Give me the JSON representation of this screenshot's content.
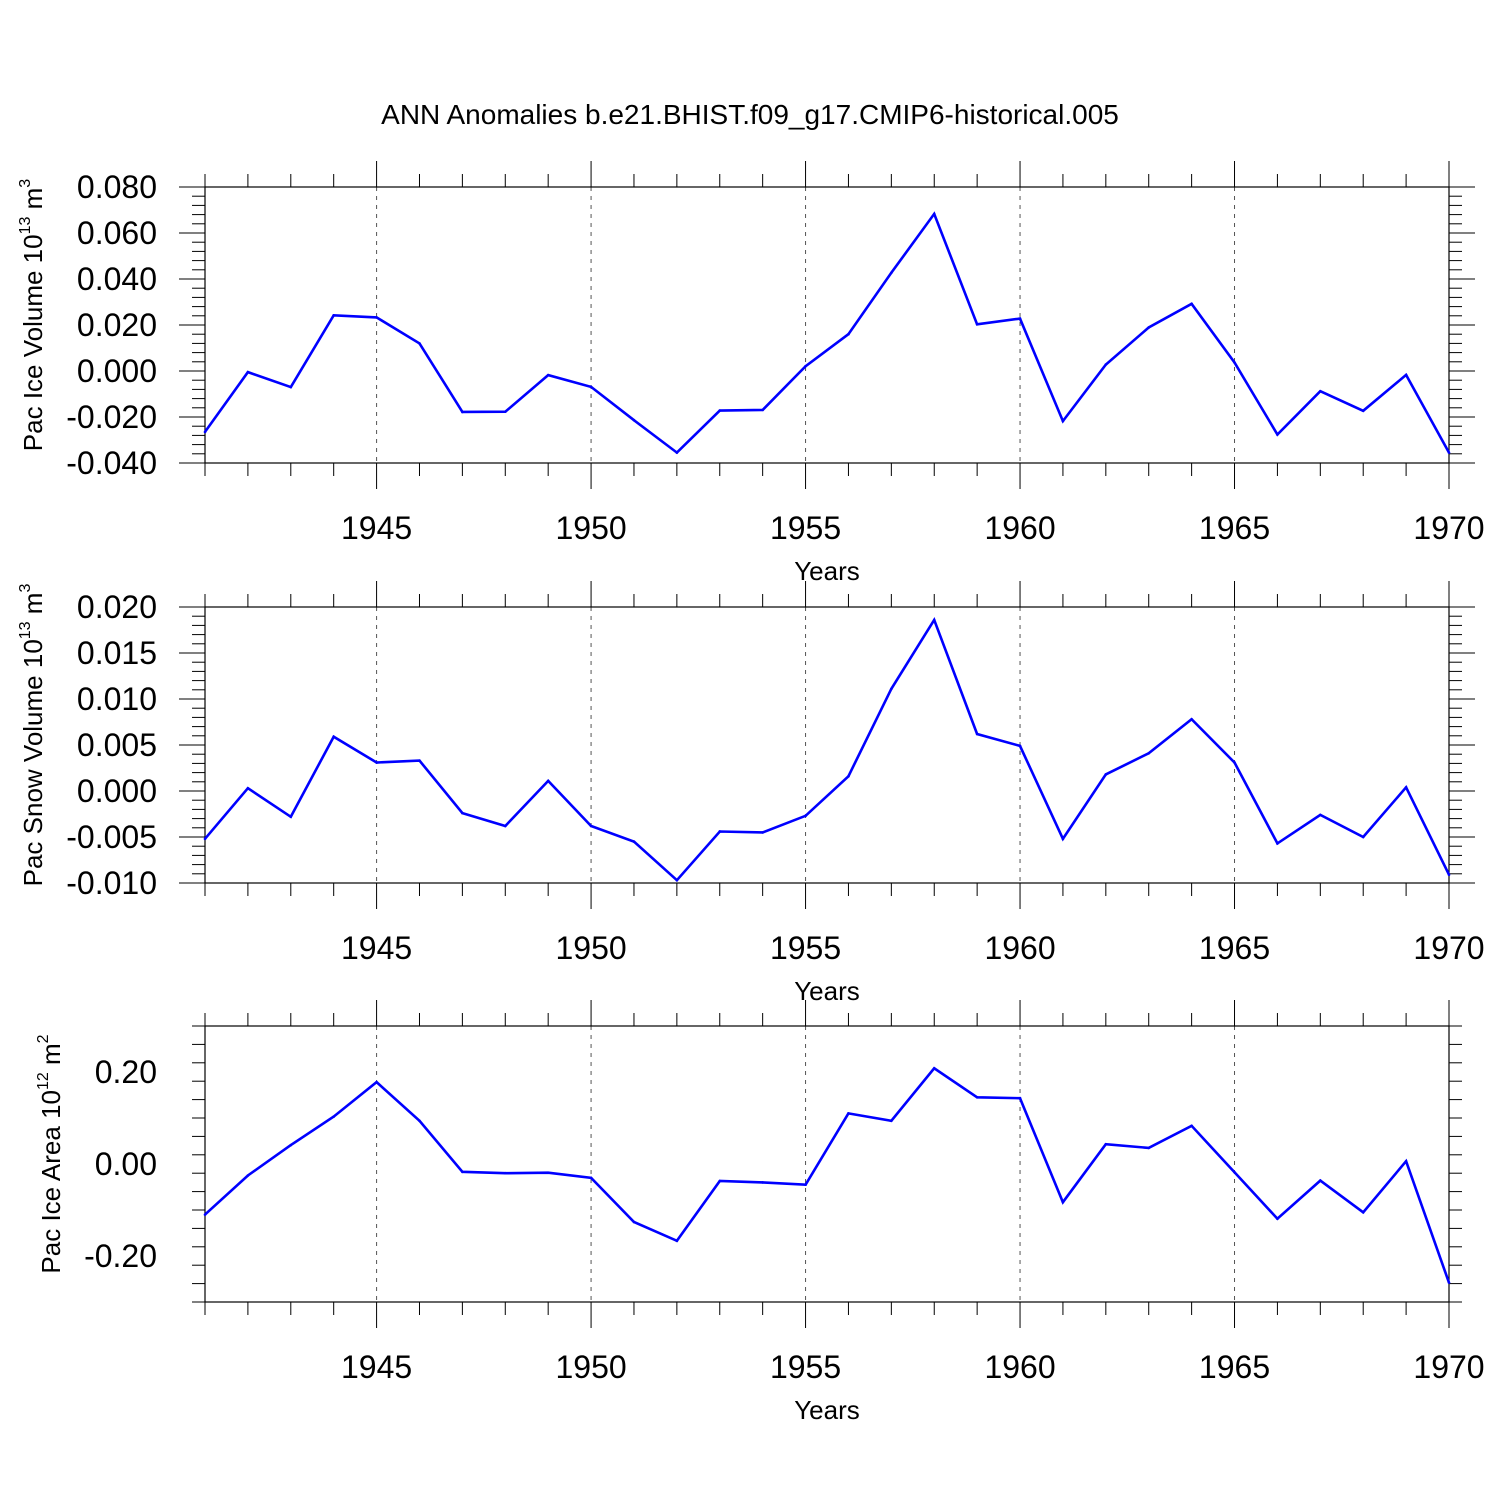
{
  "title": "ANN Anomalies b.e21.BHIST.f09_g17.CMIP6-historical.005",
  "line_color": "#0000ff",
  "chart_data": [
    {
      "type": "line",
      "ylabel": "Pac Ice Volume 10^13 m^3",
      "ylabel_parts": {
        "main": "Pac Ice Volume 10",
        "exp": "13",
        "unit": " m",
        "unit_exp": "3"
      },
      "xlabel": "Years",
      "xlim": [
        1941,
        1970
      ],
      "ylim": [
        -0.04,
        0.08
      ],
      "yticks": [
        -0.04,
        -0.02,
        0.0,
        0.02,
        0.04,
        0.06,
        0.08
      ],
      "ytick_labels": [
        "-0.040",
        "-0.020",
        "0.000",
        "0.020",
        "0.040",
        "0.060",
        "0.080"
      ],
      "xticks": [
        1945,
        1950,
        1955,
        1960,
        1965,
        1970
      ],
      "xtick_labels": [
        "1945",
        "1950",
        "1955",
        "1960",
        "1965",
        "1970"
      ],
      "x": [
        1941,
        1942,
        1943,
        1944,
        1945,
        1946,
        1947,
        1948,
        1949,
        1950,
        1951,
        1952,
        1953,
        1954,
        1955,
        1956,
        1957,
        1958,
        1959,
        1960,
        1961,
        1962,
        1963,
        1964,
        1965,
        1966,
        1967,
        1968,
        1969,
        1970
      ],
      "values": [
        -0.0265,
        -0.0005,
        -0.007,
        0.0242,
        0.0233,
        0.012,
        -0.0178,
        -0.0177,
        -0.0018,
        -0.0069,
        -0.0214,
        -0.0355,
        -0.0172,
        -0.0169,
        0.0021,
        0.016,
        0.0427,
        0.0683,
        0.0203,
        0.0228,
        -0.0218,
        0.0028,
        0.0189,
        0.0292,
        0.0037,
        -0.0276,
        -0.0088,
        -0.0173,
        -0.0017,
        -0.0355
      ]
    },
    {
      "type": "line",
      "ylabel": "Pac Snow Volume 10^13 m^3",
      "ylabel_parts": {
        "main": "Pac Snow Volume 10",
        "exp": "13",
        "unit": " m",
        "unit_exp": "3"
      },
      "xlabel": "Years",
      "xlim": [
        1941,
        1970
      ],
      "ylim": [
        -0.01,
        0.02
      ],
      "yticks": [
        -0.01,
        -0.005,
        0.0,
        0.005,
        0.01,
        0.015,
        0.02
      ],
      "ytick_labels": [
        "-0.010",
        "-0.005",
        "0.000",
        "0.005",
        "0.010",
        "0.015",
        "0.020"
      ],
      "xticks": [
        1945,
        1950,
        1955,
        1960,
        1965,
        1970
      ],
      "xtick_labels": [
        "1945",
        "1950",
        "1955",
        "1960",
        "1965",
        "1970"
      ],
      "x": [
        1941,
        1942,
        1943,
        1944,
        1945,
        1946,
        1947,
        1948,
        1949,
        1950,
        1951,
        1952,
        1953,
        1954,
        1955,
        1956,
        1957,
        1958,
        1959,
        1960,
        1961,
        1962,
        1963,
        1964,
        1965,
        1966,
        1967,
        1968,
        1969,
        1970
      ],
      "values": [
        -0.0052,
        0.0003,
        -0.0028,
        0.0059,
        0.0031,
        0.0033,
        -0.0024,
        -0.0038,
        0.0011,
        -0.0038,
        -0.0055,
        -0.0097,
        -0.0044,
        -0.0045,
        -0.0027,
        0.0016,
        0.0111,
        0.0186,
        0.0062,
        0.0049,
        -0.0052,
        0.0018,
        0.0041,
        0.0078,
        0.0031,
        -0.0057,
        -0.0026,
        -0.005,
        0.0004,
        -0.0091
      ]
    },
    {
      "type": "line",
      "ylabel": "Pac Ice Area 10^12 m^2",
      "ylabel_parts": {
        "main": "Pac Ice Area 10",
        "exp": "12",
        "unit": " m",
        "unit_exp": "2"
      },
      "xlabel": "Years",
      "xlim": [
        1941,
        1970
      ],
      "ylim": [
        -0.3,
        0.3
      ],
      "yticks": [
        -0.2,
        0.0,
        0.2
      ],
      "ytick_labels": [
        "-0.20",
        "0.00",
        "0.20"
      ],
      "xticks": [
        1945,
        1950,
        1955,
        1960,
        1965,
        1970
      ],
      "xtick_labels": [
        "1945",
        "1950",
        "1955",
        "1960",
        "1965",
        "1970"
      ],
      "x": [
        1941,
        1942,
        1943,
        1944,
        1945,
        1946,
        1947,
        1948,
        1949,
        1950,
        1951,
        1952,
        1953,
        1954,
        1955,
        1956,
        1957,
        1958,
        1959,
        1960,
        1961,
        1962,
        1963,
        1964,
        1965,
        1966,
        1967,
        1968,
        1969,
        1970
      ],
      "values": [
        -0.11,
        -0.025,
        0.041,
        0.103,
        0.178,
        0.094,
        -0.017,
        -0.02,
        -0.019,
        -0.03,
        -0.126,
        -0.167,
        -0.037,
        -0.04,
        -0.045,
        0.11,
        0.094,
        0.208,
        0.145,
        0.143,
        -0.083,
        0.043,
        0.035,
        0.083,
        -0.018,
        -0.119,
        -0.036,
        -0.105,
        0.006,
        -0.258
      ]
    }
  ]
}
